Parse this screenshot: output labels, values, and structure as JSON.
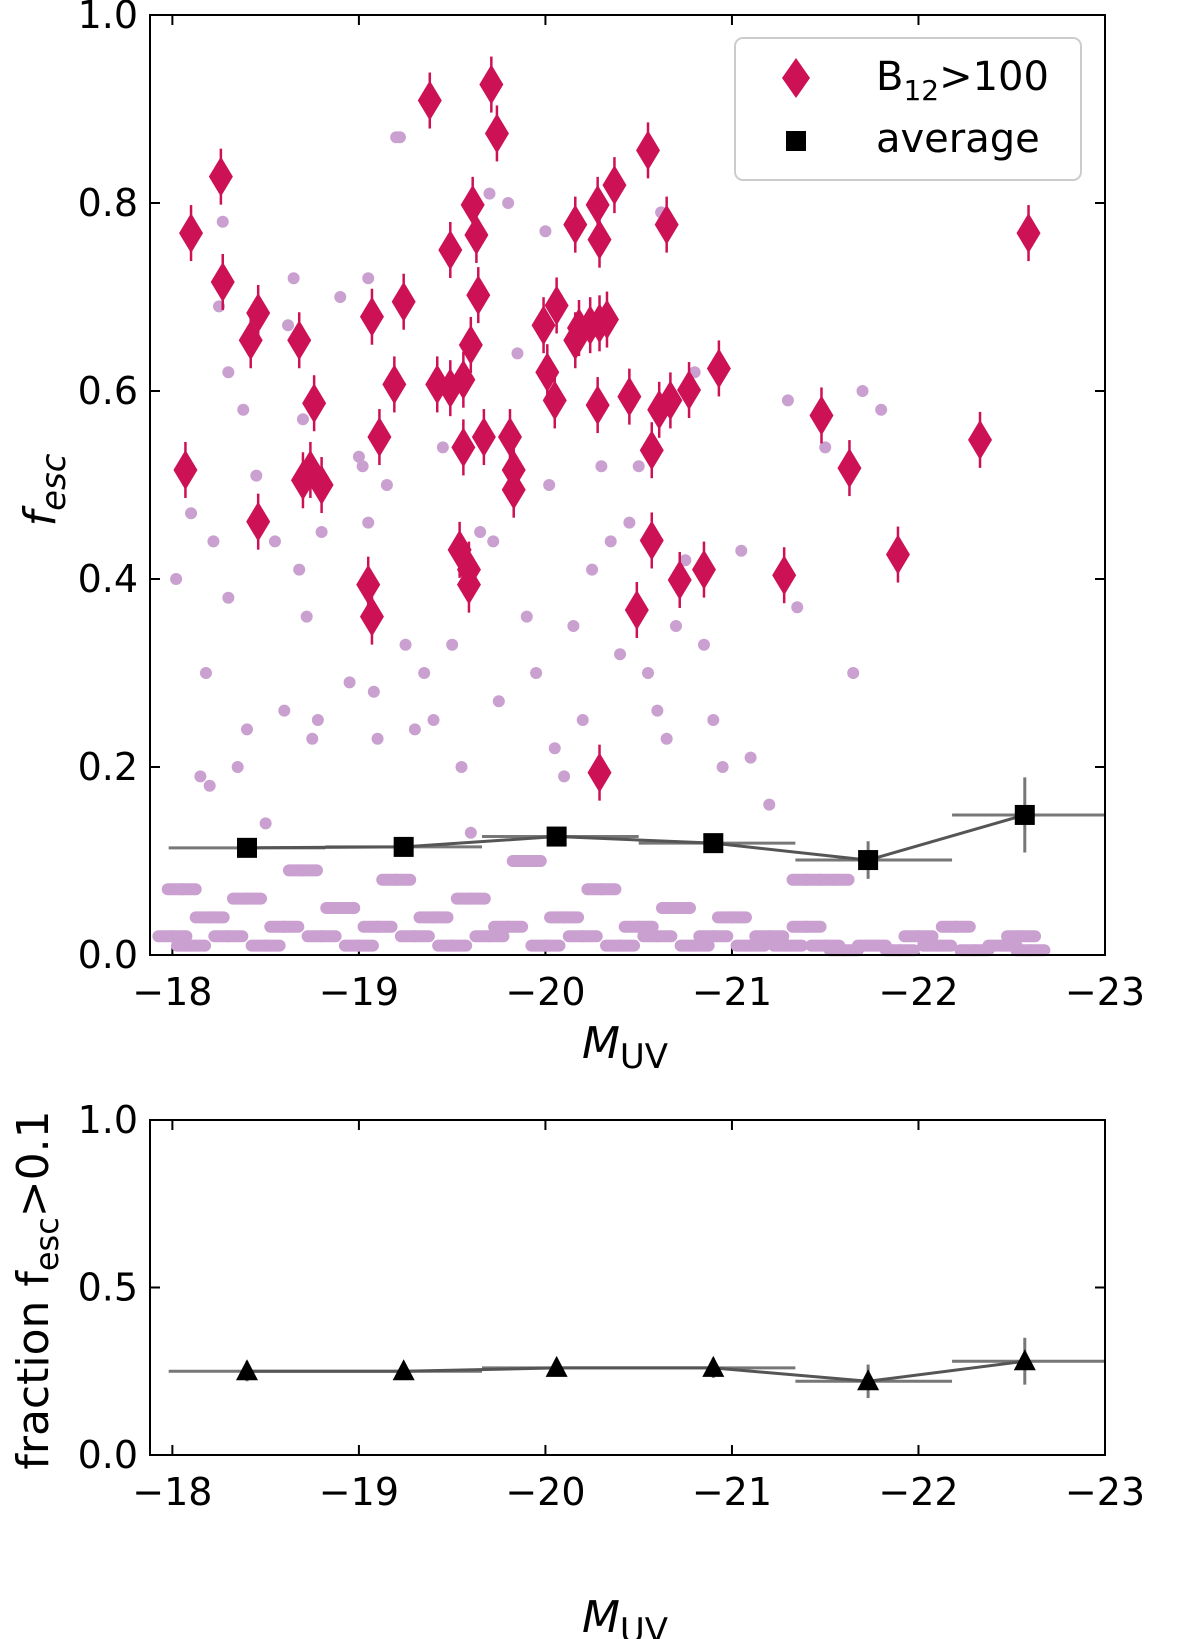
{
  "chart_data": [
    {
      "type": "scatter",
      "xlabel": "M",
      "xlabel_sub": "UV",
      "ylabel": "f",
      "ylabel_sub": "esc",
      "xlim": [
        -17.88,
        -23.0
      ],
      "ylim": [
        0.0,
        1.0
      ],
      "xticks": [
        "−18",
        "−19",
        "−20",
        "−21",
        "−22",
        "−23"
      ],
      "xtick_values": [
        -18,
        -19,
        -20,
        -21,
        -22,
        -23
      ],
      "yticks": [
        "0.0",
        "0.2",
        "0.4",
        "0.6",
        "0.8",
        "1.0"
      ],
      "ytick_values": [
        0,
        0.2,
        0.4,
        0.6,
        0.8,
        1.0
      ],
      "grid": false,
      "legend": {
        "placement": "top-right",
        "entries": [
          {
            "label": "B",
            "sub": "12",
            "suffix": ">100",
            "marker": "diamond",
            "color": "#cc1155"
          },
          {
            "label": "average",
            "marker": "square",
            "color": "#000000"
          }
        ]
      },
      "colors": {
        "all": "#c9a0d0",
        "errbar": "#cccccc",
        "b12": "#cc1155",
        "average": "#000000"
      },
      "all_points": [
        [
          -18.02,
          0.4
        ],
        [
          -18.1,
          0.47
        ],
        [
          -18.15,
          0.19
        ],
        [
          -18.18,
          0.3
        ],
        [
          -18.2,
          0.18
        ],
        [
          -18.22,
          0.44
        ],
        [
          -18.25,
          0.69
        ],
        [
          -18.27,
          0.78
        ],
        [
          -18.3,
          0.62
        ],
        [
          -18.3,
          0.38
        ],
        [
          -18.35,
          0.2
        ],
        [
          -18.38,
          0.58
        ],
        [
          -18.4,
          0.24
        ],
        [
          -18.45,
          0.51
        ],
        [
          -18.5,
          0.14
        ],
        [
          -18.55,
          0.44
        ],
        [
          -18.6,
          0.26
        ],
        [
          -18.62,
          0.67
        ],
        [
          -18.65,
          0.72
        ],
        [
          -18.68,
          0.41
        ],
        [
          -18.7,
          0.57
        ],
        [
          -18.72,
          0.36
        ],
        [
          -18.75,
          0.23
        ],
        [
          -18.78,
          0.25
        ],
        [
          -18.8,
          0.45
        ],
        [
          -18.9,
          0.7
        ],
        [
          -18.95,
          0.29
        ],
        [
          -19.0,
          0.53
        ],
        [
          -19.02,
          0.52
        ],
        [
          -19.05,
          0.72
        ],
        [
          -19.05,
          0.46
        ],
        [
          -19.08,
          0.28
        ],
        [
          -19.1,
          0.23
        ],
        [
          -19.15,
          0.5
        ],
        [
          -19.2,
          0.87
        ],
        [
          -19.22,
          0.87
        ],
        [
          -19.25,
          0.33
        ],
        [
          -19.3,
          0.24
        ],
        [
          -19.35,
          0.3
        ],
        [
          -19.4,
          0.25
        ],
        [
          -19.45,
          0.54
        ],
        [
          -19.5,
          0.33
        ],
        [
          -19.55,
          0.2
        ],
        [
          -19.6,
          0.13
        ],
        [
          -19.65,
          0.45
        ],
        [
          -19.7,
          0.81
        ],
        [
          -19.72,
          0.44
        ],
        [
          -19.75,
          0.27
        ],
        [
          -19.8,
          0.8
        ],
        [
          -19.85,
          0.64
        ],
        [
          -19.9,
          0.36
        ],
        [
          -19.95,
          0.3
        ],
        [
          -20.0,
          0.77
        ],
        [
          -20.02,
          0.5
        ],
        [
          -20.05,
          0.22
        ],
        [
          -20.1,
          0.19
        ],
        [
          -20.15,
          0.35
        ],
        [
          -20.2,
          0.25
        ],
        [
          -20.25,
          0.41
        ],
        [
          -20.3,
          0.52
        ],
        [
          -20.35,
          0.44
        ],
        [
          -20.4,
          0.32
        ],
        [
          -20.45,
          0.46
        ],
        [
          -20.5,
          0.52
        ],
        [
          -20.55,
          0.3
        ],
        [
          -20.6,
          0.26
        ],
        [
          -20.62,
          0.79
        ],
        [
          -20.65,
          0.23
        ],
        [
          -20.7,
          0.35
        ],
        [
          -20.75,
          0.42
        ],
        [
          -20.8,
          0.62
        ],
        [
          -20.85,
          0.33
        ],
        [
          -20.9,
          0.25
        ],
        [
          -20.95,
          0.2
        ],
        [
          -21.05,
          0.43
        ],
        [
          -21.1,
          0.21
        ],
        [
          -21.2,
          0.16
        ],
        [
          -21.3,
          0.59
        ],
        [
          -21.35,
          0.37
        ],
        [
          -21.4,
          0.08
        ],
        [
          -21.5,
          0.54
        ],
        [
          -21.55,
          0.08
        ],
        [
          -21.65,
          0.3
        ],
        [
          -21.7,
          0.6
        ],
        [
          -21.8,
          0.58
        ],
        [
          -18.0,
          0.02
        ],
        [
          -18.05,
          0.07
        ],
        [
          -18.1,
          0.01
        ],
        [
          -18.2,
          0.04
        ],
        [
          -18.3,
          0.02
        ],
        [
          -18.4,
          0.06
        ],
        [
          -18.5,
          0.01
        ],
        [
          -18.6,
          0.03
        ],
        [
          -18.7,
          0.09
        ],
        [
          -18.8,
          0.02
        ],
        [
          -18.9,
          0.05
        ],
        [
          -19.0,
          0.01
        ],
        [
          -19.1,
          0.03
        ],
        [
          -19.2,
          0.08
        ],
        [
          -19.3,
          0.02
        ],
        [
          -19.4,
          0.04
        ],
        [
          -19.5,
          0.01
        ],
        [
          -19.6,
          0.06
        ],
        [
          -19.7,
          0.02
        ],
        [
          -19.8,
          0.03
        ],
        [
          -19.9,
          0.1
        ],
        [
          -20.0,
          0.01
        ],
        [
          -20.1,
          0.04
        ],
        [
          -20.2,
          0.02
        ],
        [
          -20.3,
          0.07
        ],
        [
          -20.4,
          0.01
        ],
        [
          -20.5,
          0.03
        ],
        [
          -20.6,
          0.02
        ],
        [
          -20.7,
          0.05
        ],
        [
          -20.8,
          0.01
        ],
        [
          -20.9,
          0.02
        ],
        [
          -21.0,
          0.04
        ],
        [
          -21.1,
          0.01
        ],
        [
          -21.2,
          0.02
        ],
        [
          -21.3,
          0.01
        ],
        [
          -21.4,
          0.03
        ],
        [
          -21.5,
          0.01
        ],
        [
          -21.6,
          0.005
        ],
        [
          -21.75,
          0.01
        ],
        [
          -21.9,
          0.005
        ],
        [
          -22.0,
          0.02
        ],
        [
          -22.1,
          0.01
        ],
        [
          -22.2,
          0.03
        ],
        [
          -22.3,
          0.005
        ],
        [
          -22.45,
          0.01
        ],
        [
          -22.55,
          0.02
        ],
        [
          -22.6,
          0.005
        ]
      ],
      "b12_points": [
        [
          -18.07,
          0.516
        ],
        [
          -18.1,
          0.768
        ],
        [
          -18.26,
          0.828
        ],
        [
          -18.27,
          0.716
        ],
        [
          -18.42,
          0.654
        ],
        [
          -18.46,
          0.683
        ],
        [
          -18.46,
          0.461
        ],
        [
          -18.68,
          0.654
        ],
        [
          -18.7,
          0.505
        ],
        [
          -18.74,
          0.516
        ],
        [
          -18.76,
          0.587
        ],
        [
          -18.8,
          0.5
        ],
        [
          -19.05,
          0.394
        ],
        [
          -19.07,
          0.36
        ],
        [
          -19.07,
          0.679
        ],
        [
          -19.11,
          0.551
        ],
        [
          -19.19,
          0.607
        ],
        [
          -19.24,
          0.695
        ],
        [
          -19.38,
          0.909
        ],
        [
          -19.42,
          0.607
        ],
        [
          -19.49,
          0.75
        ],
        [
          -19.49,
          0.603
        ],
        [
          -19.56,
          0.612
        ],
        [
          -19.56,
          0.54
        ],
        [
          -19.54,
          0.431
        ],
        [
          -19.59,
          0.394
        ],
        [
          -19.59,
          0.41
        ],
        [
          -19.6,
          0.649
        ],
        [
          -19.61,
          0.798
        ],
        [
          -19.63,
          0.766
        ],
        [
          -19.64,
          0.702
        ],
        [
          -19.67,
          0.551
        ],
        [
          -19.71,
          0.926
        ],
        [
          -19.74,
          0.874
        ],
        [
          -19.81,
          0.551
        ],
        [
          -19.83,
          0.516
        ],
        [
          -19.83,
          0.495
        ],
        [
          -19.99,
          0.67
        ],
        [
          -20.01,
          0.62
        ],
        [
          -20.06,
          0.691
        ],
        [
          -20.05,
          0.59
        ],
        [
          -20.16,
          0.777
        ],
        [
          -20.16,
          0.654
        ],
        [
          -20.18,
          0.667
        ],
        [
          -20.24,
          0.67
        ],
        [
          -20.28,
          0.798
        ],
        [
          -20.28,
          0.585
        ],
        [
          -20.29,
          0.761
        ],
        [
          -20.29,
          0.672
        ],
        [
          -20.33,
          0.676
        ],
        [
          -20.37,
          0.819
        ],
        [
          -20.29,
          0.194
        ],
        [
          -20.45,
          0.594
        ],
        [
          -20.49,
          0.367
        ],
        [
          -20.55,
          0.856
        ],
        [
          -20.57,
          0.537
        ],
        [
          -20.57,
          0.441
        ],
        [
          -20.61,
          0.58
        ],
        [
          -20.65,
          0.777
        ],
        [
          -20.67,
          0.59
        ],
        [
          -20.72,
          0.399
        ],
        [
          -20.77,
          0.601
        ],
        [
          -20.85,
          0.41
        ],
        [
          -20.93,
          0.624
        ],
        [
          -21.28,
          0.404
        ],
        [
          -21.48,
          0.574
        ],
        [
          -21.63,
          0.518
        ],
        [
          -21.89,
          0.426
        ],
        [
          -22.33,
          0.548
        ],
        [
          -22.59,
          0.768
        ]
      ],
      "average": {
        "x": [
          -18.4,
          -19.24,
          -20.06,
          -20.9,
          -21.73,
          -22.57
        ],
        "y": [
          0.114,
          0.115,
          0.126,
          0.119,
          0.101,
          0.149
        ],
        "xerr_low": [
          -17.98,
          -18.82,
          -19.66,
          -20.5,
          -21.34,
          -22.18
        ],
        "xerr_high": [
          -18.82,
          -19.66,
          -20.5,
          -21.34,
          -22.18,
          -23.0
        ],
        "yerr": [
          0.01,
          0.01,
          0.01,
          0.01,
          0.02,
          0.04
        ]
      }
    },
    {
      "type": "line",
      "xlabel": "M",
      "xlabel_sub": "UV",
      "ylabel": "fraction f",
      "ylabel_sub": "esc",
      "ylabel_suffix": ">0.1",
      "xlim": [
        -17.88,
        -23.0
      ],
      "ylim": [
        0.0,
        1.0
      ],
      "xticks": [
        "−18",
        "−19",
        "−20",
        "−21",
        "−22",
        "−23"
      ],
      "xtick_values": [
        -18,
        -19,
        -20,
        -21,
        -22,
        -23
      ],
      "yticks": [
        "0.0",
        "0.5",
        "1.0"
      ],
      "ytick_values": [
        0,
        0.5,
        1.0
      ],
      "grid": false,
      "series": [
        {
          "marker": "triangle",
          "color": "#000000",
          "x": [
            -18.4,
            -19.24,
            -20.06,
            -20.9,
            -21.73,
            -22.57
          ],
          "y": [
            0.25,
            0.25,
            0.26,
            0.26,
            0.22,
            0.28
          ],
          "xerr_low": [
            -17.98,
            -18.82,
            -19.66,
            -20.5,
            -21.34,
            -22.18
          ],
          "xerr_high": [
            -18.82,
            -19.66,
            -20.5,
            -21.34,
            -22.18,
            -23.0
          ],
          "yerr": [
            0.03,
            0.02,
            0.02,
            0.03,
            0.05,
            0.07
          ]
        }
      ]
    }
  ]
}
